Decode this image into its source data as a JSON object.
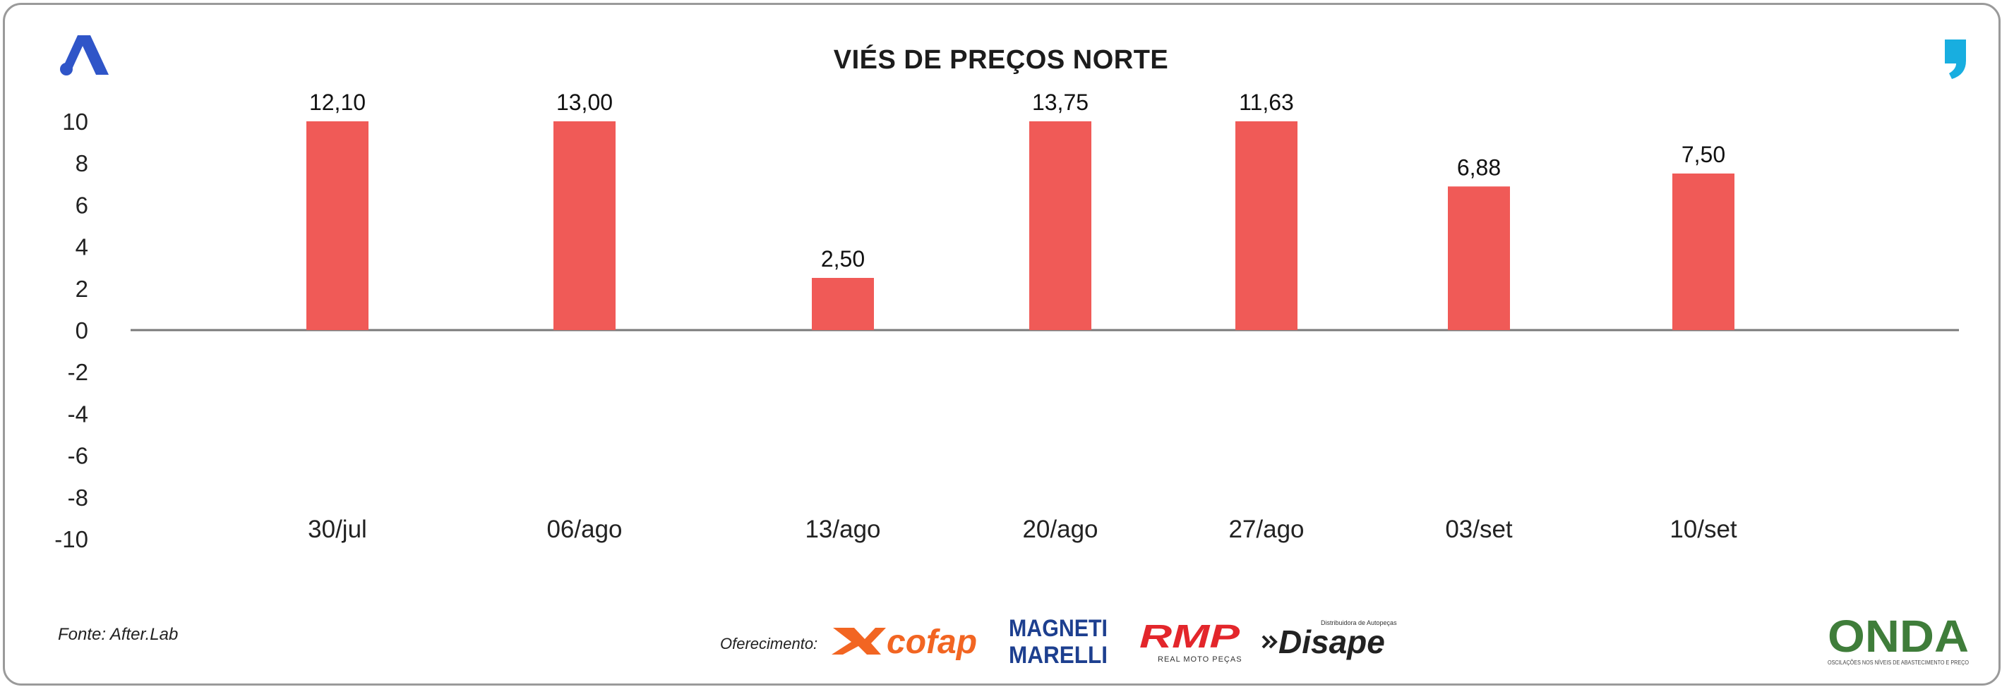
{
  "colors": {
    "bar": "#f05a57",
    "axis": "#7a7a7a",
    "brand_blue": "#2f55c8",
    "quote_cyan": "#18aee0",
    "cofap_orange": "#f26522",
    "magneti_blue": "#1d3f8f",
    "rmp_red": "#e3262b",
    "onda_green": "#3f7d3a"
  },
  "header": {
    "title": "VIÉS DE PREÇOS NORTE",
    "brand_icon": "brand-a-icon",
    "quote_icon": "quote-icon"
  },
  "chart_data": {
    "type": "bar",
    "title": "VIÉS DE PREÇOS NORTE",
    "categories": [
      "30/jul",
      "06/ago",
      "13/ago",
      "20/ago",
      "27/ago",
      "03/set",
      "10/set"
    ],
    "values": [
      12.1,
      13.0,
      2.5,
      13.75,
      11.63,
      6.88,
      7.5
    ],
    "value_labels": [
      "12,10",
      "13,00",
      "2,50",
      "13,75",
      "11,63",
      "6,88",
      "7,50"
    ],
    "ylim": [
      -10,
      10
    ],
    "yticks": [
      10,
      8,
      6,
      4,
      2,
      0,
      -2,
      -4,
      -6,
      -8,
      -10
    ],
    "ytick_labels": [
      "10",
      "8",
      "6",
      "4",
      "2",
      "0",
      "-2",
      "-4",
      "-6",
      "-8",
      "-10"
    ],
    "xlabel": "",
    "ylabel": "",
    "grid": false,
    "legend": "none"
  },
  "footer": {
    "source": "Fonte: After.Lab",
    "sponsor_label": "Oferecimento:",
    "sponsors": {
      "cofap": "cofap",
      "magneti_line1": "MAGNETI",
      "magneti_line2": "MARELLI",
      "rmp": "RMP",
      "rmp_sub": "REAL MOTO PEÇAS",
      "disape": "Disape",
      "disape_sub": "Distribuidora de Autopeças",
      "onda": "ONDA",
      "onda_sub": "OSCILAÇÕES NOS NÍVEIS DE ABASTECIMENTO E PREÇO"
    }
  }
}
